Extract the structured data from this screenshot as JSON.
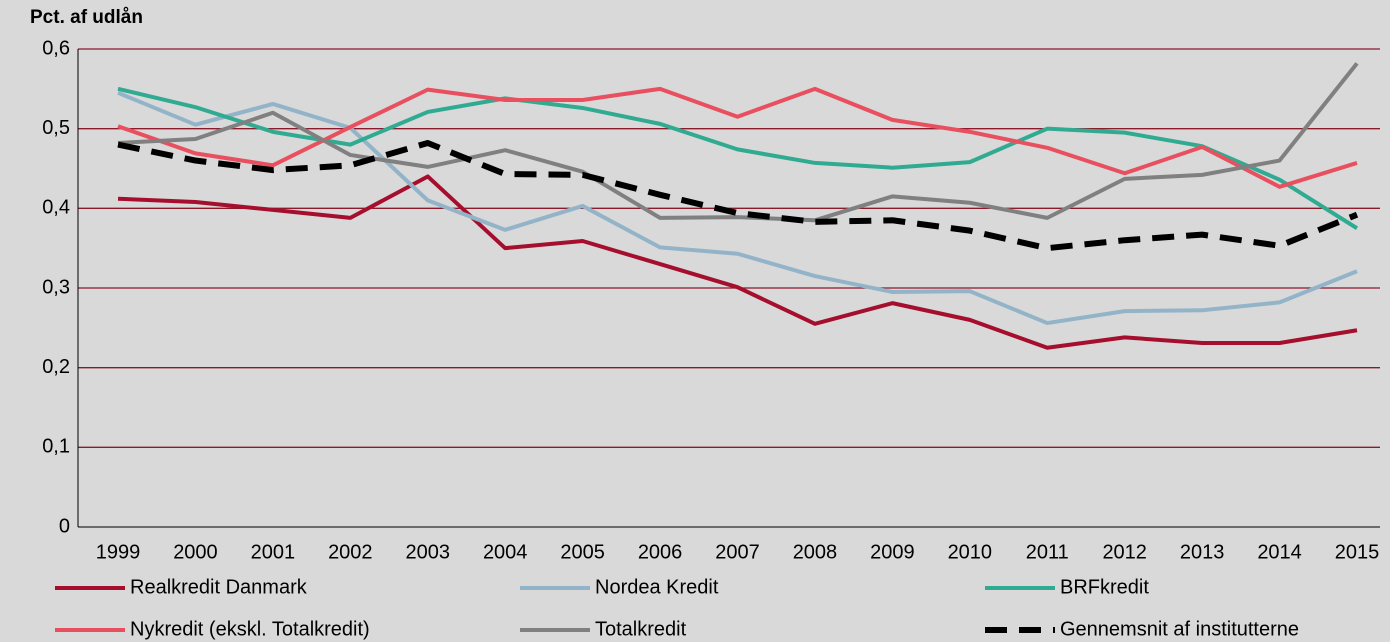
{
  "chart_data": {
    "type": "line",
    "y_label": "Pct. af udlån",
    "categories": [
      "1999",
      "2000",
      "2001",
      "2002",
      "2003",
      "2004",
      "2005",
      "2006",
      "2007",
      "2008",
      "2009",
      "2010",
      "2011",
      "2012",
      "2013",
      "2014",
      "2015"
    ],
    "ylim": [
      0,
      0.6
    ],
    "yticks": [
      0,
      {
        "value": 0.1,
        "label": "0,1"
      },
      {
        "value": 0.2,
        "label": "0,2"
      },
      {
        "value": 0.3,
        "label": "0,3"
      },
      {
        "value": 0.4,
        "label": "0,4"
      },
      {
        "value": 0.5,
        "label": "0,5"
      },
      {
        "value": 0.6,
        "label": "0,6"
      }
    ],
    "grid": true,
    "grid_color": "#8c1a2b",
    "series": [
      {
        "name": "Realkredit Danmark",
        "color": "#a50f2d",
        "values": [
          0.412,
          0.408,
          0.398,
          0.388,
          0.44,
          0.35,
          0.359,
          0.33,
          0.301,
          0.255,
          0.281,
          0.26,
          0.225,
          0.238,
          0.231,
          0.231,
          0.247
        ]
      },
      {
        "name": "Nordea Kredit",
        "color": "#93b4c8",
        "values": [
          0.545,
          0.505,
          0.531,
          0.501,
          0.41,
          0.373,
          0.403,
          0.351,
          0.343,
          0.315,
          0.295,
          0.296,
          0.256,
          0.271,
          0.272,
          0.282,
          0.321
        ]
      },
      {
        "name": "BRFkredit",
        "color": "#30ab92",
        "values": [
          0.55,
          0.527,
          0.496,
          0.48,
          0.521,
          0.538,
          0.526,
          0.506,
          0.474,
          0.457,
          0.451,
          0.458,
          0.5,
          0.495,
          0.478,
          0.436,
          0.375
        ]
      },
      {
        "name": "Nykredit (ekskl. Totalkredit)",
        "color": "#e9505f",
        "values": [
          0.503,
          0.469,
          0.454,
          0.502,
          0.549,
          0.536,
          0.536,
          0.55,
          0.515,
          0.55,
          0.511,
          0.496,
          0.476,
          0.444,
          0.477,
          0.427,
          0.457
        ]
      },
      {
        "name": "Totalkredit",
        "color": "#808080",
        "values": [
          0.482,
          0.487,
          0.52,
          0.467,
          0.452,
          0.473,
          0.446,
          0.388,
          0.389,
          0.385,
          0.415,
          0.407,
          0.388,
          0.437,
          0.442,
          0.46,
          0.582
        ]
      },
      {
        "name": "Gennemsnit af institutterne",
        "color": "#000000",
        "dashed": true,
        "values": [
          0.48,
          0.46,
          0.448,
          0.454,
          0.482,
          0.443,
          0.442,
          0.417,
          0.394,
          0.383,
          0.385,
          0.372,
          0.35,
          0.36,
          0.367,
          0.353,
          0.392
        ]
      }
    ]
  }
}
